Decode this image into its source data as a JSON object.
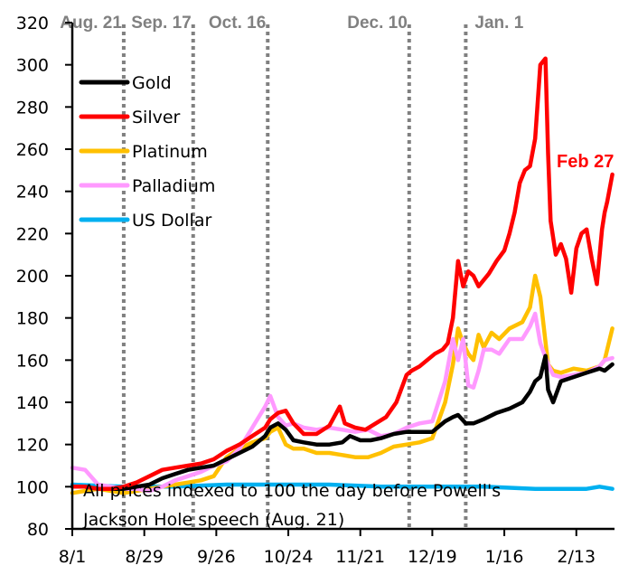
{
  "chart_data": {
    "type": "line",
    "title": "",
    "xlabel": "",
    "ylabel": "",
    "ylim": [
      80,
      320
    ],
    "yticks": [
      "80",
      "100",
      "120",
      "140",
      "160",
      "180",
      "200",
      "220",
      "240",
      "260",
      "280",
      "300",
      "320"
    ],
    "xticks": [
      "8/1",
      "8/29",
      "9/26",
      "10/24",
      "11/21",
      "12/19",
      "1/16",
      "2/13"
    ],
    "x_unit": "days since 8/1",
    "x_range": [
      0,
      210
    ],
    "grid": false,
    "legend_position": "top-left",
    "events": [
      {
        "label": "Aug. 21",
        "day": 20
      },
      {
        "label": "Sep. 17",
        "day": 47
      },
      {
        "label": "Oct. 16",
        "day": 76
      },
      {
        "label": "Dec. 10",
        "day": 131
      },
      {
        "label": "Jan. 1",
        "day": 153
      }
    ],
    "note_lines": [
      "All prices indexed to 100 the day before Powell's",
      "Jackson Hole speech (Aug. 21)"
    ],
    "end_label": "Feb 27",
    "series": [
      {
        "name": "Gold",
        "color": "#000000",
        "x": [
          0,
          5,
          10,
          15,
          20,
          25,
          30,
          35,
          40,
          45,
          50,
          55,
          60,
          65,
          70,
          75,
          77,
          80,
          83,
          86,
          90,
          95,
          100,
          105,
          108,
          112,
          116,
          120,
          125,
          130,
          135,
          140,
          145,
          148,
          150,
          153,
          156,
          160,
          165,
          170,
          175,
          178,
          180,
          182,
          184,
          185,
          187,
          190,
          195,
          200,
          205,
          207,
          210
        ],
        "y": [
          100,
          100,
          99,
          99,
          99,
          100,
          101,
          104,
          106,
          108,
          109,
          110,
          113,
          116,
          119,
          124,
          128,
          130,
          127,
          122,
          121,
          120,
          120,
          121,
          124,
          122,
          122,
          123,
          125,
          126,
          126,
          126,
          131,
          133,
          134,
          130,
          130,
          132,
          135,
          137,
          140,
          145,
          150,
          152,
          162,
          146,
          140,
          150,
          152,
          154,
          156,
          155,
          158
        ]
      },
      {
        "name": "Silver",
        "color": "#ff0000",
        "x": [
          0,
          5,
          10,
          15,
          20,
          25,
          30,
          35,
          40,
          45,
          50,
          55,
          60,
          65,
          70,
          75,
          77,
          80,
          83,
          86,
          90,
          95,
          100,
          104,
          106,
          110,
          114,
          118,
          122,
          126,
          130,
          132,
          135,
          138,
          141,
          144,
          146,
          148,
          150,
          152,
          154,
          156,
          158,
          162,
          165,
          168,
          170,
          172,
          174,
          176,
          178,
          180,
          182,
          184,
          185,
          186,
          188,
          190,
          192,
          194,
          196,
          198,
          200,
          202,
          204,
          206,
          207,
          208,
          210
        ],
        "y": [
          100,
          100,
          99,
          99,
          100,
          102,
          105,
          108,
          109,
          110,
          111,
          113,
          117,
          120,
          124,
          128,
          132,
          135,
          136,
          130,
          125,
          125,
          129,
          138,
          130,
          128,
          127,
          130,
          133,
          140,
          153,
          155,
          157,
          160,
          163,
          165,
          168,
          180,
          207,
          195,
          202,
          200,
          195,
          201,
          207,
          212,
          220,
          230,
          244,
          250,
          252,
          265,
          300,
          303,
          258,
          226,
          210,
          215,
          208,
          192,
          213,
          220,
          222,
          208,
          196,
          222,
          230,
          235,
          248
        ]
      },
      {
        "name": "Platinum",
        "color": "#ffc000",
        "x": [
          0,
          5,
          10,
          15,
          20,
          25,
          30,
          35,
          40,
          45,
          50,
          55,
          60,
          65,
          70,
          75,
          77,
          80,
          83,
          86,
          90,
          95,
          100,
          105,
          110,
          115,
          120,
          125,
          130,
          135,
          140,
          145,
          148,
          150,
          152,
          154,
          156,
          158,
          160,
          163,
          166,
          170,
          175,
          178,
          180,
          182,
          185,
          187,
          190,
          195,
          200,
          205,
          207,
          210
        ],
        "y": [
          97,
          98,
          99,
          98,
          97,
          98,
          99,
          100,
          101,
          102,
          103,
          105,
          114,
          118,
          121,
          123,
          126,
          128,
          120,
          118,
          118,
          116,
          116,
          115,
          114,
          114,
          116,
          119,
          120,
          121,
          123,
          140,
          158,
          175,
          168,
          163,
          160,
          172,
          166,
          173,
          170,
          175,
          178,
          185,
          200,
          190,
          158,
          155,
          154,
          156,
          155,
          157,
          160,
          175
        ]
      },
      {
        "name": "Palladium",
        "color": "#ff99ff",
        "x": [
          0,
          5,
          10,
          15,
          20,
          25,
          30,
          35,
          40,
          45,
          50,
          55,
          60,
          65,
          70,
          75,
          77,
          80,
          83,
          86,
          90,
          95,
          100,
          105,
          110,
          115,
          120,
          125,
          130,
          135,
          140,
          145,
          148,
          150,
          152,
          154,
          156,
          158,
          160,
          163,
          166,
          170,
          175,
          178,
          180,
          182,
          185,
          187,
          190,
          195,
          200,
          205,
          207,
          210
        ],
        "y": [
          109,
          108,
          101,
          100,
          99,
          99,
          98,
          100,
          103,
          105,
          107,
          110,
          112,
          118,
          128,
          138,
          143,
          133,
          129,
          130,
          128,
          127,
          128,
          127,
          126,
          127,
          124,
          125,
          128,
          130,
          131,
          150,
          170,
          160,
          170,
          148,
          147,
          155,
          165,
          165,
          163,
          170,
          170,
          176,
          182,
          168,
          158,
          153,
          152,
          153,
          154,
          157,
          160,
          161
        ]
      },
      {
        "name": "US Dollar",
        "color": "#00b0f0",
        "x": [
          0,
          20,
          40,
          60,
          80,
          100,
          120,
          140,
          160,
          180,
          190,
          200,
          205,
          210
        ],
        "y": [
          101,
          100,
          100,
          101,
          101,
          101,
          100,
          100,
          100,
          99,
          99,
          99,
          100,
          99
        ]
      }
    ]
  }
}
